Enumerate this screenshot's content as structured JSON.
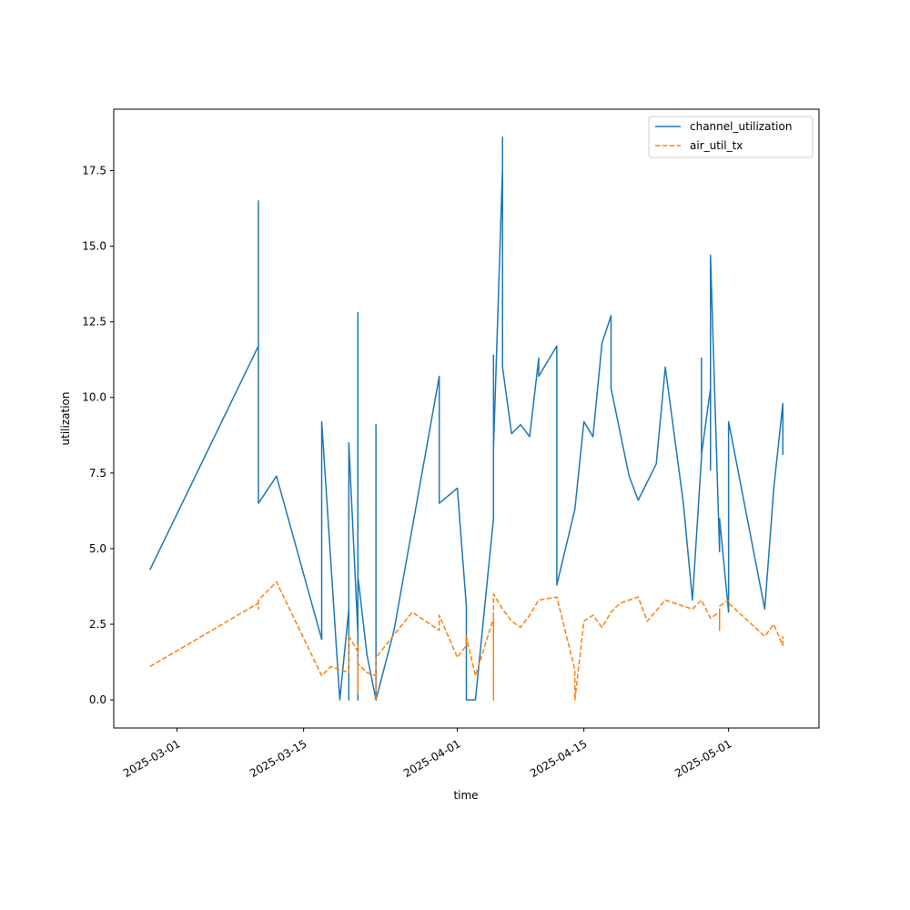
{
  "chart_data": {
    "type": "line",
    "xlabel": "time",
    "ylabel": "utilization",
    "x_type": "date",
    "xlim": [
      "2025-02-22",
      "2025-05-11"
    ],
    "ylim": [
      -0.93,
      19.53
    ],
    "x_ticks": [
      "2025-03-01",
      "2025-03-15",
      "2025-04-01",
      "2025-04-15",
      "2025-05-01"
    ],
    "y_ticks": [
      0.0,
      2.5,
      5.0,
      7.5,
      10.0,
      12.5,
      15.0,
      17.5
    ],
    "y_tick_labels": [
      "0.0",
      "2.5",
      "5.0",
      "7.5",
      "10.0",
      "12.5",
      "15.0",
      "17.5"
    ],
    "grid": false,
    "legend": "top-right",
    "series": [
      {
        "name": "channel_utilization",
        "color": "#1f77b4",
        "dash": "solid",
        "points": [
          [
            "2025-02-26",
            4.3
          ],
          [
            "2025-03-10",
            11.7
          ],
          [
            "2025-03-10",
            10.2
          ],
          [
            "2025-03-10",
            16.5
          ],
          [
            "2025-03-10",
            6.5
          ],
          [
            "2025-03-12",
            7.4
          ],
          [
            "2025-03-17",
            2.0
          ],
          [
            "2025-03-17",
            9.2
          ],
          [
            "2025-03-19",
            0.0
          ],
          [
            "2025-03-20",
            3.0
          ],
          [
            "2025-03-20",
            0.0
          ],
          [
            "2025-03-20",
            8.5
          ],
          [
            "2025-03-21",
            2.2
          ],
          [
            "2025-03-21",
            12.8
          ],
          [
            "2025-03-21",
            0.0
          ],
          [
            "2025-03-21",
            4.1
          ],
          [
            "2025-03-22",
            1.5
          ],
          [
            "2025-03-23",
            0.0
          ],
          [
            "2025-03-23",
            9.1
          ],
          [
            "2025-03-23",
            0.0
          ],
          [
            "2025-03-25",
            2.3
          ],
          [
            "2025-03-30",
            10.7
          ],
          [
            "2025-03-30",
            6.5
          ],
          [
            "2025-04-01",
            7.0
          ],
          [
            "2025-04-02",
            3.1
          ],
          [
            "2025-04-02",
            0.0
          ],
          [
            "2025-04-03",
            0.0
          ],
          [
            "2025-04-05",
            6.0
          ],
          [
            "2025-04-05",
            11.4
          ],
          [
            "2025-04-05",
            8.3
          ],
          [
            "2025-04-06",
            17.6
          ],
          [
            "2025-04-06",
            18.6
          ],
          [
            "2025-04-06",
            11.0
          ],
          [
            "2025-04-07",
            8.8
          ],
          [
            "2025-04-08",
            9.1
          ],
          [
            "2025-04-09",
            8.7
          ],
          [
            "2025-04-10",
            11.3
          ],
          [
            "2025-04-10",
            10.7
          ],
          [
            "2025-04-12",
            11.7
          ],
          [
            "2025-04-12",
            6.5
          ],
          [
            "2025-04-12",
            3.8
          ],
          [
            "2025-04-14",
            6.3
          ],
          [
            "2025-04-15",
            9.2
          ],
          [
            "2025-04-16",
            8.7
          ],
          [
            "2025-04-17",
            11.8
          ],
          [
            "2025-04-18",
            12.7
          ],
          [
            "2025-04-18",
            10.3
          ],
          [
            "2025-04-20",
            7.4
          ],
          [
            "2025-04-21",
            6.6
          ],
          [
            "2025-04-23",
            7.8
          ],
          [
            "2025-04-24",
            11.0
          ],
          [
            "2025-04-26",
            6.5
          ],
          [
            "2025-04-27",
            3.3
          ],
          [
            "2025-04-28",
            8.0
          ],
          [
            "2025-04-28",
            11.3
          ],
          [
            "2025-04-28",
            8.1
          ],
          [
            "2025-04-29",
            10.3
          ],
          [
            "2025-04-29",
            7.6
          ],
          [
            "2025-04-29",
            14.7
          ],
          [
            "2025-04-30",
            4.9
          ],
          [
            "2025-04-30",
            6.0
          ],
          [
            "2025-05-01",
            2.9
          ],
          [
            "2025-05-01",
            9.2
          ],
          [
            "2025-05-05",
            3.0
          ],
          [
            "2025-05-06",
            7.0
          ],
          [
            "2025-05-07",
            9.8
          ],
          [
            "2025-05-07",
            8.1
          ]
        ]
      },
      {
        "name": "air_util_tx",
        "color": "#ff7f0e",
        "dash": "dashed",
        "points": [
          [
            "2025-02-26",
            1.1
          ],
          [
            "2025-03-10",
            3.2
          ],
          [
            "2025-03-10",
            3.0
          ],
          [
            "2025-03-10",
            3.3
          ],
          [
            "2025-03-12",
            3.9
          ],
          [
            "2025-03-17",
            0.8
          ],
          [
            "2025-03-18",
            1.1
          ],
          [
            "2025-03-20",
            0.9
          ],
          [
            "2025-03-20",
            2.1
          ],
          [
            "2025-03-21",
            1.6
          ],
          [
            "2025-03-21",
            1.8
          ],
          [
            "2025-03-21",
            0.2
          ],
          [
            "2025-03-21",
            1.2
          ],
          [
            "2025-03-22",
            0.9
          ],
          [
            "2025-03-23",
            0.8
          ],
          [
            "2025-03-23",
            0.0
          ],
          [
            "2025-03-23",
            1.4
          ],
          [
            "2025-03-27",
            2.9
          ],
          [
            "2025-03-30",
            2.3
          ],
          [
            "2025-03-30",
            2.8
          ],
          [
            "2025-04-01",
            1.4
          ],
          [
            "2025-04-02",
            1.8
          ],
          [
            "2025-04-02",
            2.1
          ],
          [
            "2025-04-03",
            0.8
          ],
          [
            "2025-04-05",
            2.7
          ],
          [
            "2025-04-05",
            0.0
          ],
          [
            "2025-04-05",
            3.5
          ],
          [
            "2025-04-06",
            3.0
          ],
          [
            "2025-04-07",
            2.6
          ],
          [
            "2025-04-08",
            2.4
          ],
          [
            "2025-04-09",
            2.8
          ],
          [
            "2025-04-10",
            3.3
          ],
          [
            "2025-04-12",
            3.4
          ],
          [
            "2025-04-14",
            1.0
          ],
          [
            "2025-04-14",
            0.0
          ],
          [
            "2025-04-15",
            2.6
          ],
          [
            "2025-04-16",
            2.8
          ],
          [
            "2025-04-17",
            2.4
          ],
          [
            "2025-04-18",
            2.9
          ],
          [
            "2025-04-19",
            3.2
          ],
          [
            "2025-04-21",
            3.4
          ],
          [
            "2025-04-22",
            2.6
          ],
          [
            "2025-04-24",
            3.3
          ],
          [
            "2025-04-27",
            3.0
          ],
          [
            "2025-04-28",
            3.3
          ],
          [
            "2025-04-29",
            2.7
          ],
          [
            "2025-04-30",
            2.9
          ],
          [
            "2025-04-30",
            2.3
          ],
          [
            "2025-04-30",
            3.1
          ],
          [
            "2025-05-01",
            3.3
          ],
          [
            "2025-05-01",
            3.2
          ],
          [
            "2025-05-05",
            2.1
          ],
          [
            "2025-05-06",
            2.5
          ],
          [
            "2025-05-07",
            1.8
          ],
          [
            "2025-05-07",
            2.1
          ]
        ]
      }
    ]
  }
}
